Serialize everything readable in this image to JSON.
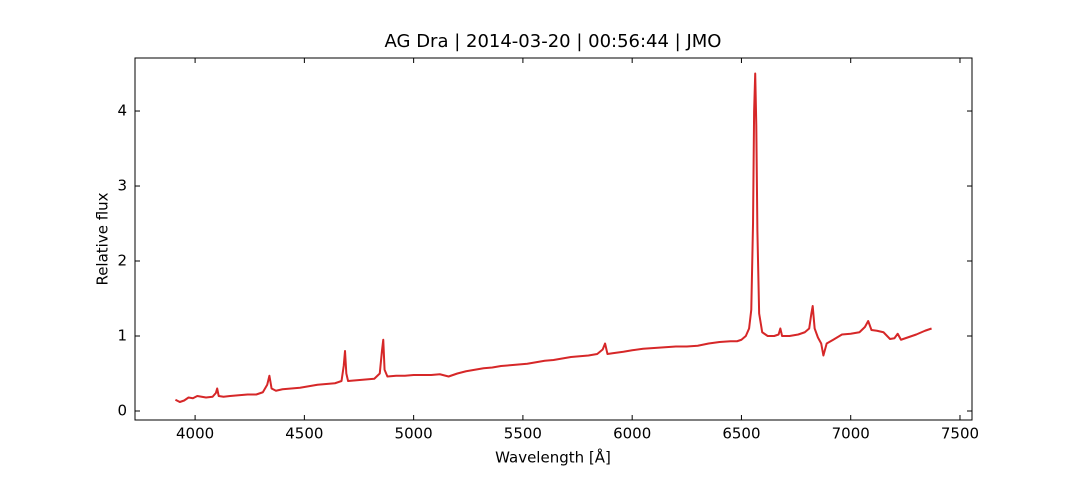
{
  "chart_data": {
    "type": "line",
    "title": "AG Dra | 2014-03-20 | 00:56:44 | JMO",
    "x_label": "Wavelength [Å]",
    "y_label": "Relative flux",
    "xlim": [
      3725,
      7555
    ],
    "ylim": [
      -0.12,
      4.707
    ],
    "xticks": [
      4000,
      4500,
      5000,
      5500,
      6000,
      6500,
      7000,
      7500
    ],
    "yticks": [
      0,
      1,
      2,
      3,
      4
    ],
    "series": [
      {
        "color": "#d62728",
        "x": [
          3910,
          3930,
          3950,
          3970,
          3990,
          4010,
          4030,
          4050,
          4080,
          4095,
          4101,
          4108,
          4130,
          4160,
          4200,
          4240,
          4280,
          4310,
          4330,
          4340,
          4350,
          4370,
          4400,
          4440,
          4480,
          4520,
          4560,
          4600,
          4640,
          4670,
          4680,
          4686,
          4692,
          4700,
          4740,
          4780,
          4820,
          4845,
          4855,
          4861,
          4867,
          4880,
          4920,
          4960,
          5000,
          5040,
          5080,
          5120,
          5160,
          5200,
          5240,
          5280,
          5320,
          5360,
          5400,
          5440,
          5480,
          5520,
          5560,
          5600,
          5640,
          5680,
          5720,
          5760,
          5800,
          5840,
          5865,
          5876,
          5887,
          5910,
          5960,
          6000,
          6050,
          6100,
          6150,
          6200,
          6250,
          6300,
          6350,
          6400,
          6450,
          6480,
          6500,
          6520,
          6535,
          6545,
          6553,
          6558,
          6563,
          6568,
          6573,
          6581,
          6595,
          6620,
          6650,
          6670,
          6678,
          6686,
          6720,
          6760,
          6790,
          6810,
          6820,
          6826,
          6835,
          6850,
          6865,
          6875,
          6890,
          6920,
          6960,
          7000,
          7040,
          7065,
          7080,
          7095,
          7120,
          7150,
          7180,
          7200,
          7215,
          7230,
          7260,
          7300,
          7340,
          7370
        ],
        "values": [
          0.15,
          0.12,
          0.14,
          0.18,
          0.17,
          0.2,
          0.19,
          0.18,
          0.19,
          0.24,
          0.3,
          0.2,
          0.19,
          0.2,
          0.21,
          0.22,
          0.22,
          0.25,
          0.35,
          0.47,
          0.3,
          0.27,
          0.29,
          0.3,
          0.31,
          0.33,
          0.35,
          0.36,
          0.37,
          0.4,
          0.6,
          0.8,
          0.5,
          0.4,
          0.41,
          0.42,
          0.43,
          0.5,
          0.8,
          0.95,
          0.55,
          0.46,
          0.47,
          0.47,
          0.48,
          0.48,
          0.48,
          0.49,
          0.46,
          0.5,
          0.53,
          0.55,
          0.57,
          0.58,
          0.6,
          0.61,
          0.62,
          0.63,
          0.65,
          0.67,
          0.68,
          0.7,
          0.72,
          0.73,
          0.74,
          0.76,
          0.82,
          0.9,
          0.76,
          0.77,
          0.79,
          0.81,
          0.83,
          0.84,
          0.85,
          0.86,
          0.86,
          0.87,
          0.9,
          0.92,
          0.93,
          0.93,
          0.95,
          1.0,
          1.1,
          1.35,
          2.5,
          4.0,
          4.5,
          3.8,
          2.4,
          1.3,
          1.05,
          1.0,
          1.0,
          1.02,
          1.1,
          1.0,
          1.0,
          1.02,
          1.05,
          1.1,
          1.3,
          1.4,
          1.1,
          0.98,
          0.9,
          0.74,
          0.9,
          0.95,
          1.02,
          1.03,
          1.05,
          1.12,
          1.2,
          1.08,
          1.07,
          1.05,
          0.96,
          0.97,
          1.03,
          0.95,
          0.98,
          1.02,
          1.07,
          1.1
        ]
      }
    ]
  }
}
